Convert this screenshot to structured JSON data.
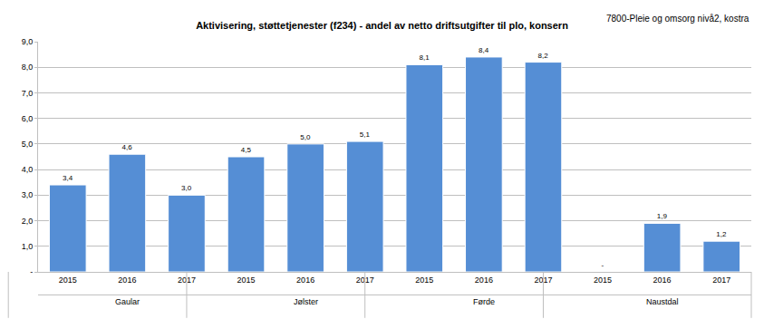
{
  "chart_data": {
    "type": "bar",
    "title": "Aktivisering, støttetjenester (f234) - andel av netto driftsutgifter til plo, konsern",
    "subtitle": "7800-Pleie og omsorg nivå2, kostra",
    "categories": [
      "2015",
      "2016",
      "2017",
      "2015",
      "2016",
      "2017",
      "2015",
      "2016",
      "2017",
      "2015",
      "2016",
      "2017"
    ],
    "groups": [
      "Gaular",
      "Gaular",
      "Gaular",
      "Jølster",
      "Jølster",
      "Jølster",
      "Førde",
      "Førde",
      "Førde",
      "Naustdal",
      "Naustdal",
      "Naustdal"
    ],
    "values": [
      3.4,
      4.6,
      3.0,
      4.5,
      5.0,
      5.1,
      8.1,
      8.4,
      8.2,
      0,
      1.9,
      1.2
    ],
    "value_labels": [
      "3,4",
      "4,6",
      "3,0",
      "4,5",
      "5,0",
      "5,1",
      "8,1",
      "8,4",
      "8,2",
      "-",
      "1,9",
      "1,2"
    ],
    "data_labels": true,
    "color": "#558ed5",
    "ylim": [
      0,
      9
    ],
    "yticks": [
      {
        "value": 0,
        "label": "-"
      },
      {
        "value": 1,
        "label": "1,0"
      },
      {
        "value": 2,
        "label": "2,0"
      },
      {
        "value": 3,
        "label": "3,0"
      },
      {
        "value": 4,
        "label": "4,0"
      },
      {
        "value": 5,
        "label": "5,0"
      },
      {
        "value": 6,
        "label": "6,0"
      },
      {
        "value": 7,
        "label": "7,0"
      },
      {
        "value": 8,
        "label": "8,0"
      },
      {
        "value": 9,
        "label": "9,0"
      }
    ],
    "grid": true
  }
}
